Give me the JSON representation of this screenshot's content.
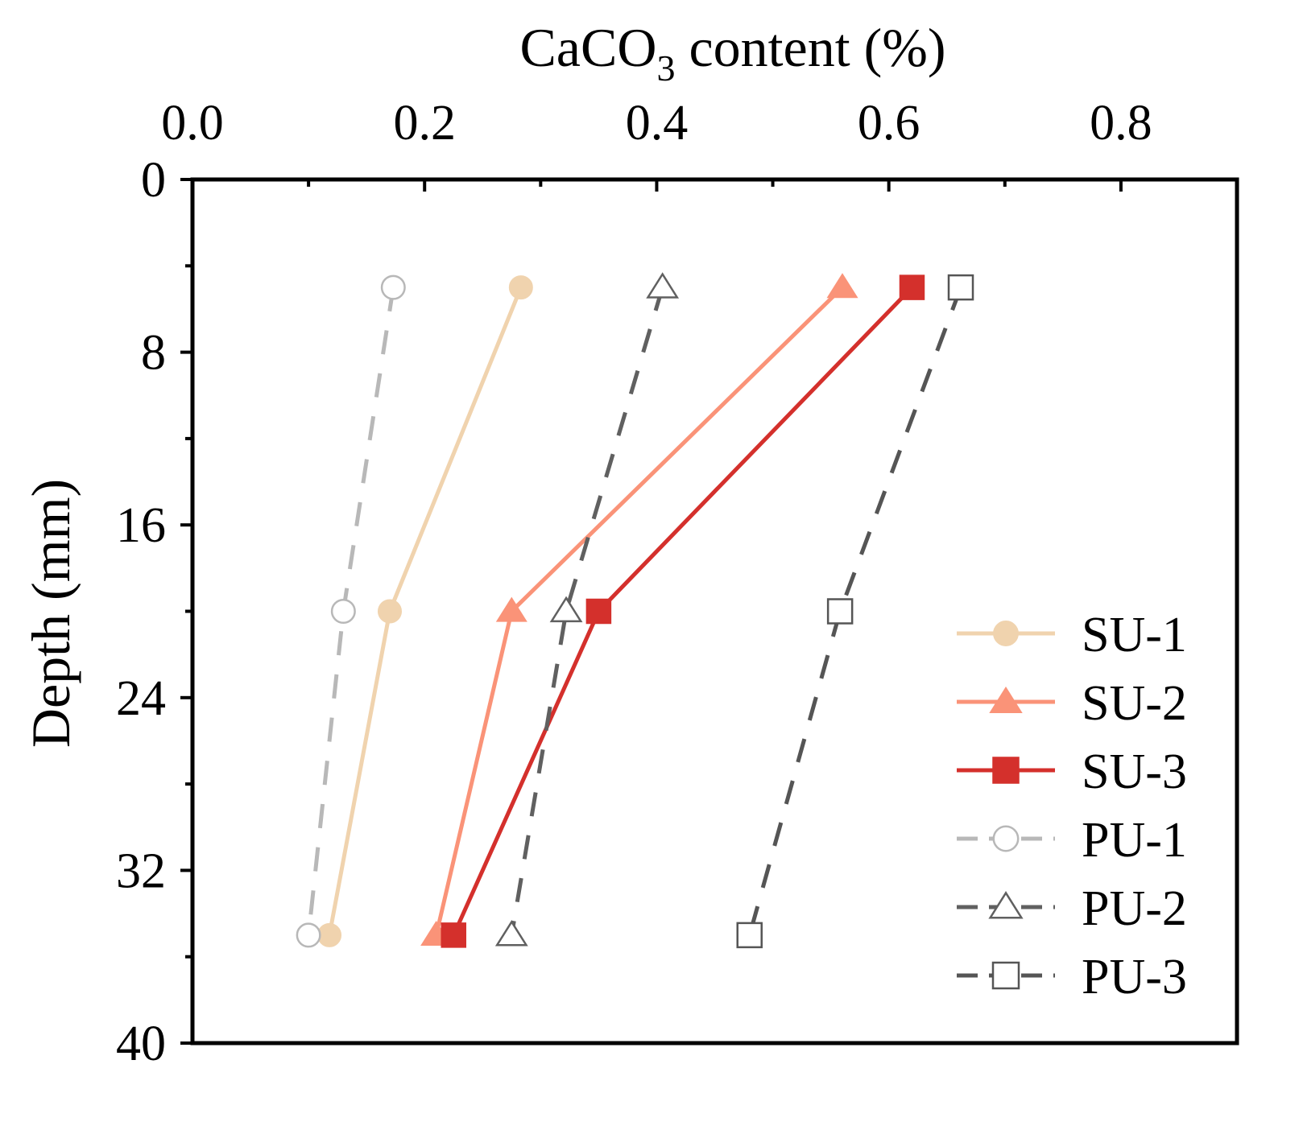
{
  "chart_data": {
    "type": "line",
    "title": "",
    "xlabel": "CaCO3 content (%)",
    "xlabel_parts": {
      "main": "CaCO",
      "sub": "3",
      "rest": " content (%)"
    },
    "ylabel": "Depth (mm)",
    "xlim": [
      0.0,
      0.9
    ],
    "ylim": [
      0,
      40
    ],
    "y_inverted": true,
    "x_axis_position": "top",
    "x_ticks": [
      0.0,
      0.2,
      0.4,
      0.6,
      0.8
    ],
    "x_tick_labels": [
      "0.0",
      "0.2",
      "0.4",
      "0.6",
      "0.8"
    ],
    "x_minor_ticks": [
      0.1,
      0.3,
      0.5,
      0.7
    ],
    "y_ticks": [
      0,
      8,
      16,
      24,
      32,
      40
    ],
    "y_tick_labels": [
      "0",
      "8",
      "16",
      "24",
      "32",
      "40"
    ],
    "y_minor_ticks": [
      4,
      12,
      20,
      28,
      36
    ],
    "grid": false,
    "legend_position": "bottom-right",
    "series": [
      {
        "name": "SU-1",
        "x": [
          0.283,
          0.17,
          0.118
        ],
        "y": [
          5,
          20,
          35
        ],
        "color": "#f0d3ae",
        "marker": "circle",
        "filled": true,
        "dashed": false
      },
      {
        "name": "SU-2",
        "x": [
          0.56,
          0.275,
          0.21
        ],
        "y": [
          5,
          20,
          35
        ],
        "color": "#fa9378",
        "marker": "triangle",
        "filled": true,
        "dashed": false
      },
      {
        "name": "SU-3",
        "x": [
          0.62,
          0.35,
          0.225
        ],
        "y": [
          5,
          20,
          35
        ],
        "color": "#d4302c",
        "marker": "square",
        "filled": true,
        "dashed": false
      },
      {
        "name": "PU-1",
        "x": [
          0.173,
          0.13,
          0.1
        ],
        "y": [
          5,
          20,
          35
        ],
        "color": "#b8b8b8",
        "marker": "circle",
        "filled": false,
        "dashed": true
      },
      {
        "name": "PU-2",
        "x": [
          0.405,
          0.322,
          0.275
        ],
        "y": [
          5,
          20,
          35
        ],
        "color": "#606060",
        "marker": "triangle",
        "filled": false,
        "dashed": true
      },
      {
        "name": "PU-3",
        "x": [
          0.662,
          0.558,
          0.48
        ],
        "y": [
          5,
          20,
          35
        ],
        "color": "#555555",
        "marker": "square",
        "filled": false,
        "dashed": true
      }
    ]
  }
}
